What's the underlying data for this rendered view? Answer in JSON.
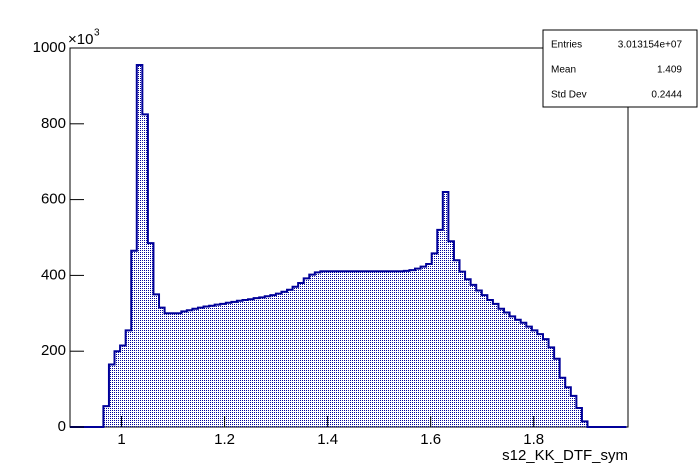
{
  "chart_data": {
    "type": "histogram",
    "x_label": "s12_KK_DTF_sym",
    "y_multiplier": "×10",
    "y_multiplier_exponent": "3",
    "bins": [
      0.9,
      0.9108,
      0.9216,
      0.9324,
      0.9432,
      0.954,
      0.9648,
      0.9756,
      0.9864,
      0.9972,
      1.008,
      1.0188,
      1.0296,
      1.0404,
      1.0512,
      1.062,
      1.0728,
      1.0836,
      1.0944,
      1.1052,
      1.116,
      1.1268,
      1.1376,
      1.1484,
      1.1592,
      1.17,
      1.1808,
      1.1916,
      1.2024,
      1.2132,
      1.224,
      1.2348,
      1.2456,
      1.2564,
      1.2672,
      1.278,
      1.2888,
      1.2996,
      1.3104,
      1.3212,
      1.332,
      1.3428,
      1.3536,
      1.3644,
      1.3752,
      1.386,
      1.3968,
      1.4076,
      1.4184,
      1.4292,
      1.44,
      1.4508,
      1.4616,
      1.4724,
      1.4832,
      1.494,
      1.5048,
      1.5156,
      1.5264,
      1.5372,
      1.548,
      1.5588,
      1.5696,
      1.5804,
      1.5912,
      1.602,
      1.6128,
      1.6236,
      1.6344,
      1.6452,
      1.656,
      1.6668,
      1.6776,
      1.6884,
      1.6992,
      1.71,
      1.7208,
      1.7316,
      1.7424,
      1.7532,
      1.764,
      1.7748,
      1.7856,
      1.7964,
      1.8072,
      1.818,
      1.8288,
      1.8396,
      1.8504,
      1.8612,
      1.872,
      1.8828,
      1.8936,
      1.9044,
      1.9152,
      1.926,
      1.9368,
      1.9476,
      1.9584,
      1.9692,
      1.98
    ],
    "values": [
      0,
      0,
      0,
      0,
      0,
      0,
      55,
      165,
      200,
      215,
      255,
      465,
      955,
      825,
      485,
      350,
      315,
      300,
      300,
      300,
      305,
      308,
      312,
      315,
      318,
      320,
      323,
      325,
      328,
      330,
      333,
      335,
      337,
      340,
      342,
      345,
      348,
      352,
      357,
      362,
      370,
      380,
      392,
      402,
      408,
      411,
      411,
      411,
      411,
      411,
      411,
      411,
      411,
      411,
      411,
      411,
      411,
      411,
      411,
      411,
      412,
      414,
      418,
      423,
      430,
      458,
      520,
      620,
      490,
      440,
      410,
      390,
      375,
      360,
      348,
      335,
      325,
      312,
      302,
      292,
      283,
      275,
      265,
      255,
      245,
      232,
      210,
      180,
      130,
      105,
      82,
      50,
      15,
      0,
      0,
      0,
      0,
      0,
      0,
      0
    ],
    "color": "#000099",
    "xlim": [
      0.9,
      1.983
    ],
    "xticks": [
      1,
      1.2,
      1.4,
      1.6,
      1.8
    ],
    "ylim": [
      0,
      1000
    ],
    "yticks": [
      0,
      200,
      400,
      600,
      800,
      1000
    ],
    "stats": [
      {
        "label": "Entries",
        "value": "3.013154e+07"
      },
      {
        "label": "Mean",
        "value": "1.409"
      },
      {
        "label": "Std Dev",
        "value": "0.2444"
      }
    ]
  }
}
